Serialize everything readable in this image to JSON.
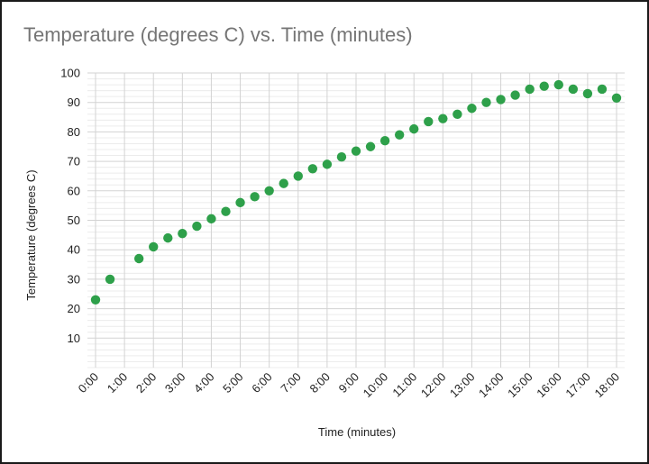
{
  "chart_data": {
    "type": "scatter",
    "title": "Temperature (degrees C) vs. Time (minutes)",
    "xlabel": "Time (minutes)",
    "ylabel": "Temperature (degrees C)",
    "xlim": [
      0,
      18
    ],
    "ylim": [
      0,
      100
    ],
    "x_ticks": [
      "0:00",
      "1:00",
      "2:00",
      "3:00",
      "4:00",
      "5:00",
      "6:00",
      "7:00",
      "8:00",
      "9:00",
      "10:00",
      "11:00",
      "12:00",
      "13:00",
      "14:00",
      "15:00",
      "16:00",
      "17:00",
      "18:00"
    ],
    "y_ticks": [
      10,
      20,
      30,
      40,
      50,
      60,
      70,
      80,
      90,
      100
    ],
    "grid": true,
    "minor_grid_step": 2,
    "legend": "none",
    "color": "#2ea04a",
    "x": [
      0,
      0.5,
      1.5,
      2,
      2.5,
      3,
      3.5,
      4,
      4.5,
      5,
      5.5,
      6,
      6.5,
      7,
      7.5,
      8,
      8.5,
      9,
      9.5,
      10,
      10.5,
      11,
      11.5,
      12,
      12.5,
      13,
      13.5,
      14,
      14.5,
      15,
      15.5,
      16,
      16.5,
      17,
      17.5,
      18
    ],
    "x_labels": [
      "0:00",
      "0:30",
      "1:30",
      "2:00",
      "2:30",
      "3:00",
      "3:30",
      "4:00",
      "4:30",
      "5:00",
      "5:30",
      "6:00",
      "6:30",
      "7:00",
      "7:30",
      "8:00",
      "8:30",
      "9:00",
      "9:30",
      "10:00",
      "10:30",
      "11:00",
      "11:30",
      "12:00",
      "12:30",
      "13:00",
      "13:30",
      "14:00",
      "14:30",
      "15:00",
      "15:30",
      "16:00",
      "16:30",
      "17:00",
      "17:30",
      "18:00"
    ],
    "y": [
      23,
      30,
      37,
      41,
      44,
      45.5,
      48,
      50.5,
      53,
      56,
      58,
      60,
      62.5,
      65,
      67.5,
      69,
      71.5,
      73.5,
      75,
      77,
      79,
      81,
      83.5,
      84.5,
      86,
      88,
      90,
      91,
      92.5,
      94.5,
      95.5,
      96,
      94.5,
      93,
      94.5,
      91.5
    ]
  }
}
